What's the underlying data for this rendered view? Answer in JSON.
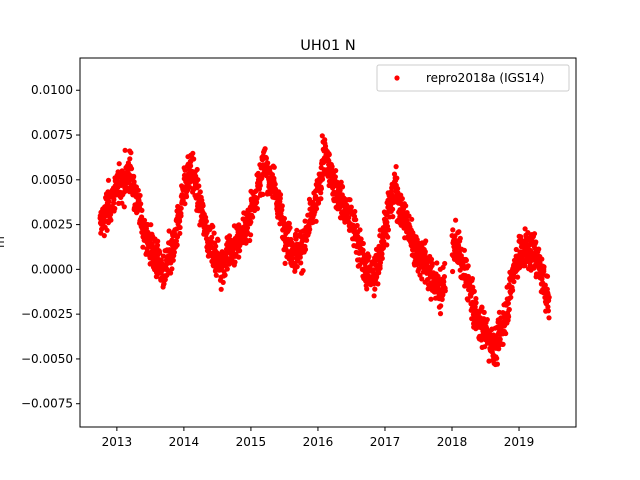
{
  "chart_data": {
    "type": "scatter",
    "title": "UH01 N",
    "xlabel": "",
    "ylabel": "m",
    "x_type": "date-year",
    "xlim": [
      2012.45,
      2019.85
    ],
    "ylim": [
      -0.0088,
      0.0118
    ],
    "x_ticks": [
      2013,
      2014,
      2015,
      2016,
      2017,
      2018,
      2019
    ],
    "x_tick_labels": [
      "2013",
      "2014",
      "2015",
      "2016",
      "2017",
      "2018",
      "2019"
    ],
    "y_ticks": [
      0.01,
      0.0075,
      0.005,
      0.0025,
      0.0,
      -0.0025,
      -0.005,
      -0.0075
    ],
    "y_tick_labels": [
      "0.0100",
      "0.0075",
      "0.0050",
      "0.0025",
      "0.0000",
      "−0.0025",
      "−0.0050",
      "−0.0075"
    ],
    "grid": false,
    "legend_position": "top-right",
    "series": [
      {
        "name": "repro2018a (IGS14)",
        "color": "#ff0000",
        "marker": "circle",
        "trend": {
          "x": [
            2012.75,
            2013.0,
            2013.2,
            2013.4,
            2013.55,
            2013.7,
            2013.85,
            2014.0,
            2014.1,
            2014.25,
            2014.4,
            2014.55,
            2014.75,
            2014.95,
            2015.05,
            2015.2,
            2015.35,
            2015.5,
            2015.65,
            2015.8,
            2016.0,
            2016.1,
            2016.25,
            2016.4,
            2016.55,
            2016.7,
            2016.85,
            2017.0,
            2017.15,
            2017.3,
            2017.45,
            2017.6,
            2017.75,
            2017.85,
            2018.05,
            2018.2,
            2018.35,
            2018.5,
            2018.65,
            2018.8,
            2018.95,
            2019.1,
            2019.25,
            2019.45
          ],
          "y": [
            0.0025,
            0.0045,
            0.0055,
            0.0022,
            0.0008,
            -0.0002,
            0.0012,
            0.0045,
            0.0058,
            0.0035,
            0.0012,
            0.0003,
            0.0012,
            0.0025,
            0.004,
            0.0058,
            0.0045,
            0.0022,
            0.0008,
            0.0015,
            0.0042,
            0.0065,
            0.0045,
            0.0035,
            0.0022,
            0.0002,
            -0.0005,
            0.0025,
            0.0045,
            0.0028,
            0.0012,
            0.0005,
            -0.0008,
            -0.0012,
            0.0015,
            -0.0002,
            -0.0025,
            -0.0035,
            -0.0045,
            -0.0025,
            0.0005,
            0.0012,
            0.0008,
            -0.0018
          ]
        },
        "noise_amplitude": 0.0011,
        "gap": [
          2017.9,
          2018.0
        ]
      }
    ]
  }
}
